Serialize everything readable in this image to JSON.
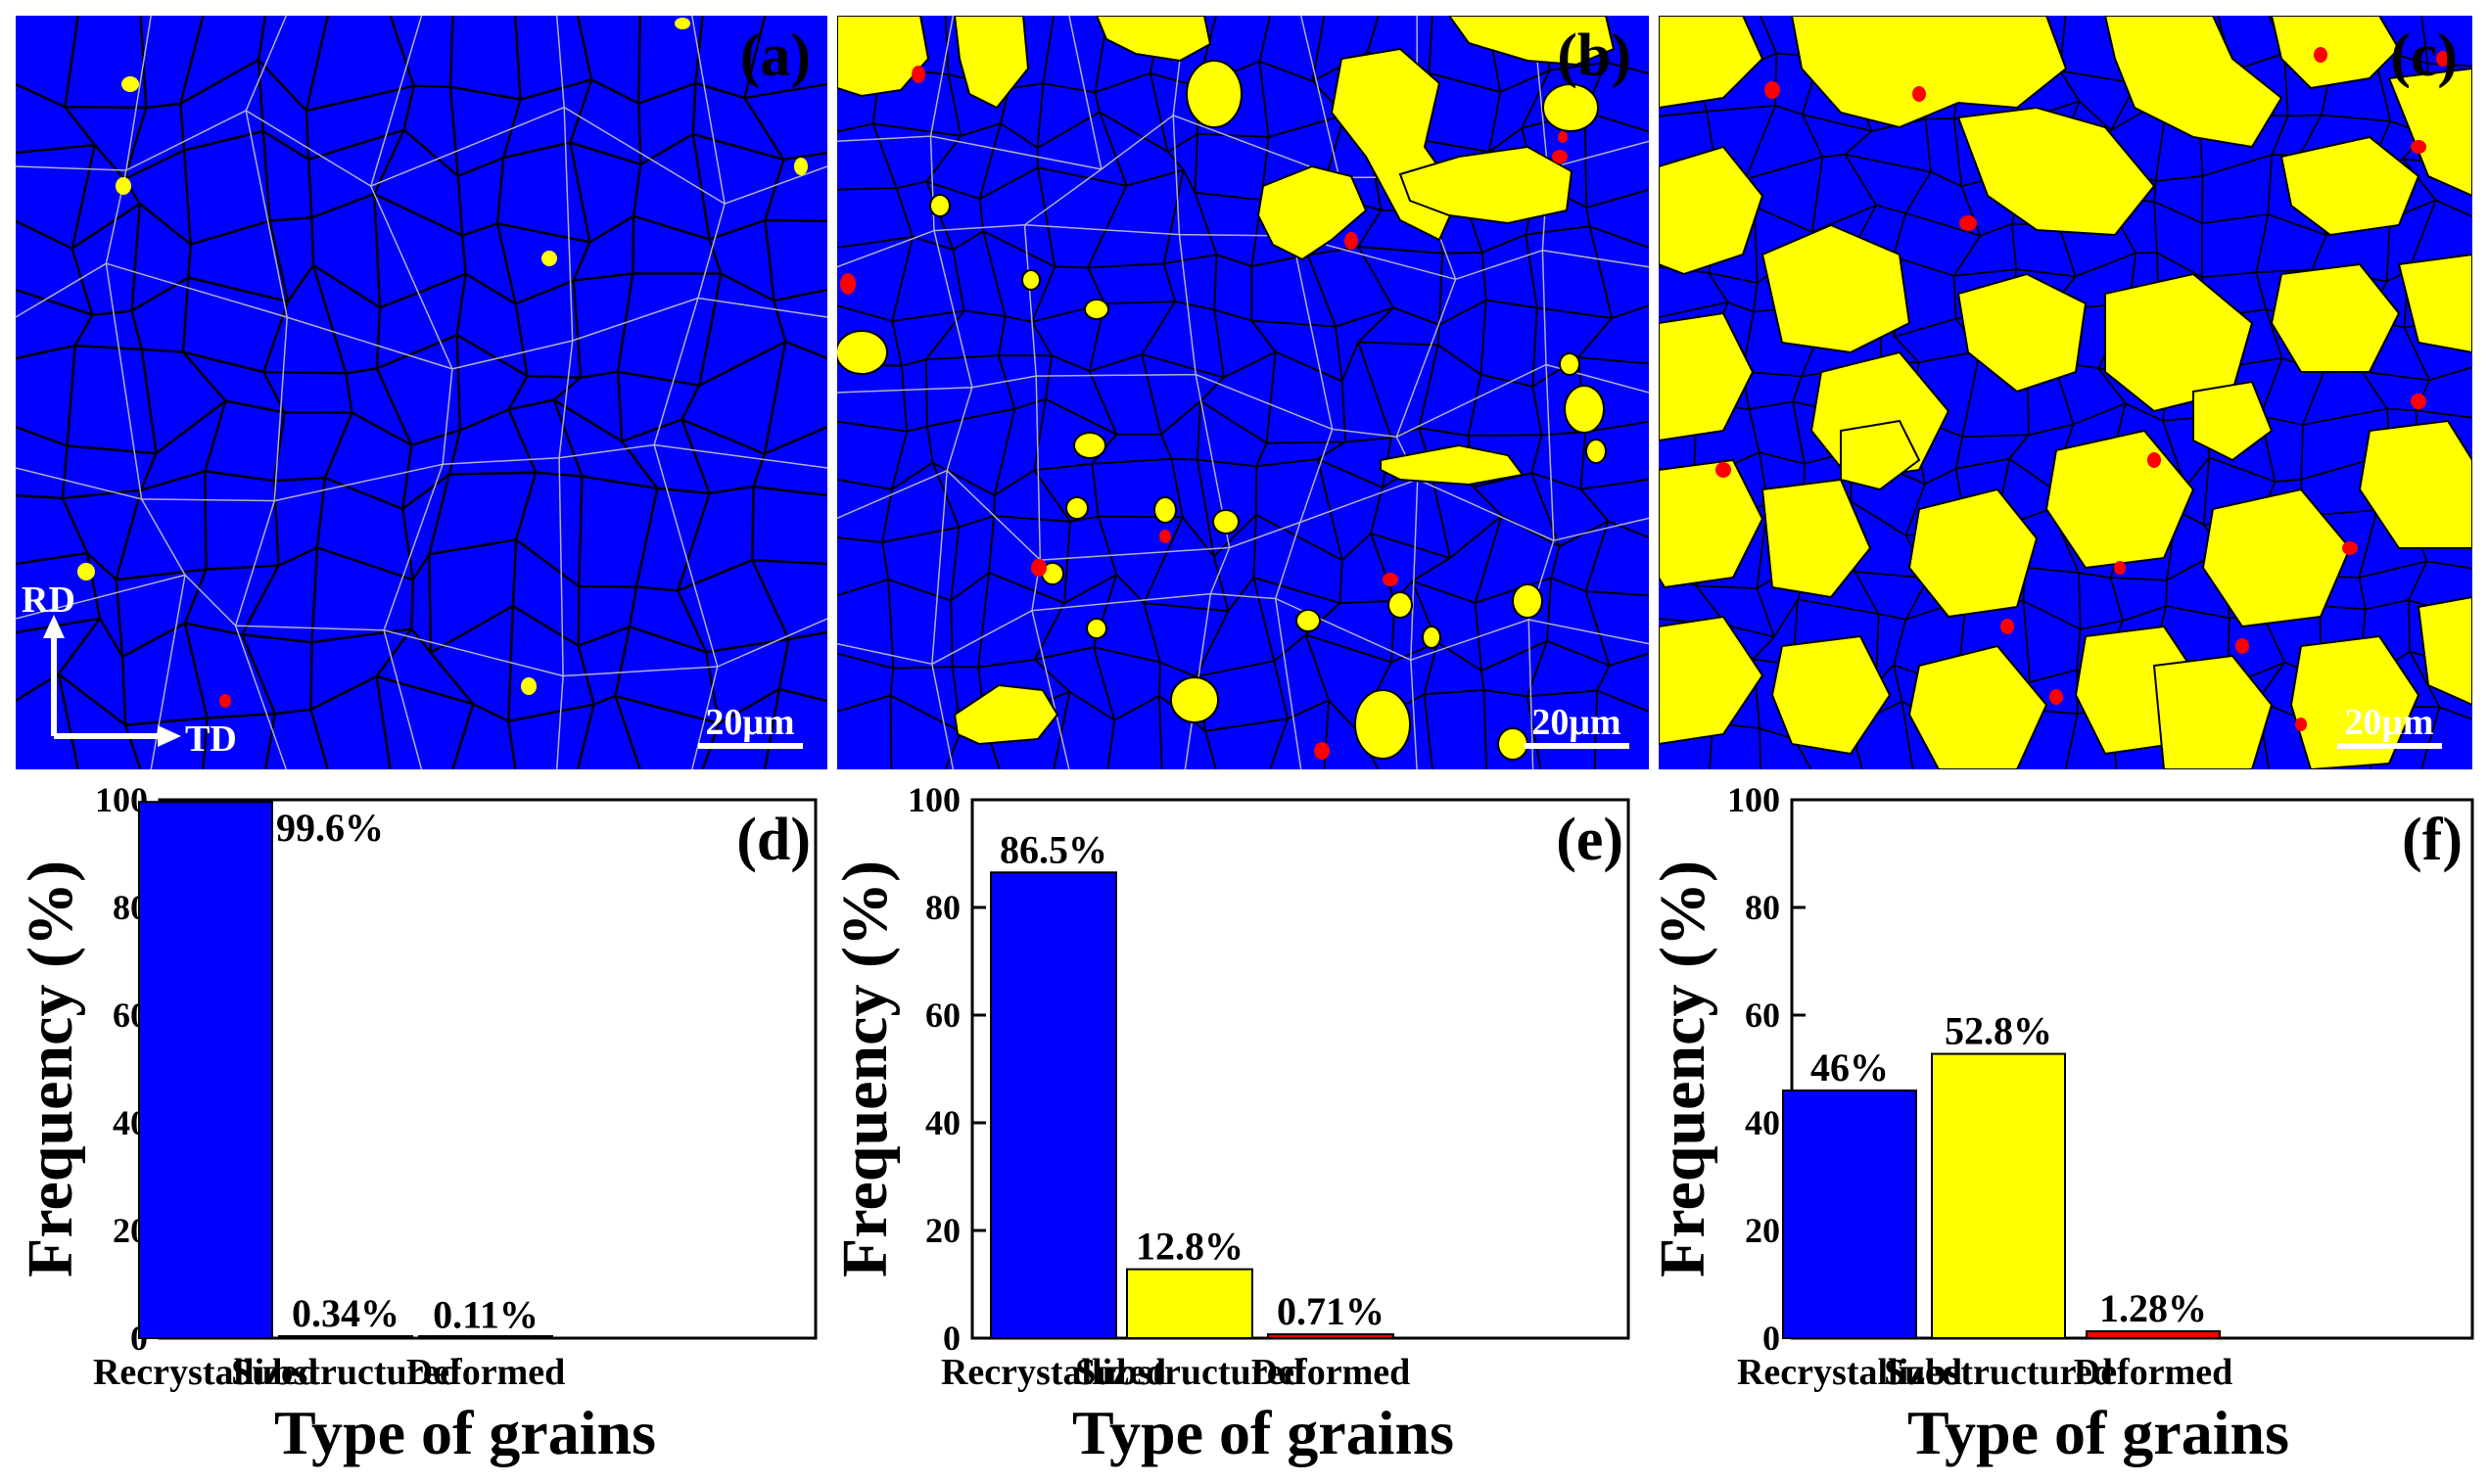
{
  "colors": {
    "recrystallized": "#0000ff",
    "substructured": "#ffff00",
    "deformed": "#ff0000",
    "boundary": "#000000",
    "low_angle_boundary": "#b0b0c8"
  },
  "maps": [
    {
      "label": "(a)",
      "scale_bar": "20μm",
      "axis_rd": "RD",
      "axis_td": "TD"
    },
    {
      "label": "(b)",
      "scale_bar": "20μm"
    },
    {
      "label": "(c)",
      "scale_bar": "20μm"
    }
  ],
  "chart_data": [
    {
      "type": "bar",
      "label": "(d)",
      "categories": [
        "Recrystallized",
        "Substructured",
        "Deformed"
      ],
      "values": [
        99.6,
        0.34,
        0.11
      ],
      "value_labels": [
        "99.6%",
        "0.34%",
        "0.11%"
      ],
      "bar_colors": [
        "#0000ff",
        "#ffff00",
        "#ff0000"
      ],
      "xlabel": "Type of grains",
      "ylabel": "Frequency (%)",
      "ylim": [
        0,
        100
      ],
      "yticks": [
        0,
        20,
        40,
        60,
        80,
        100
      ],
      "grid": false
    },
    {
      "type": "bar",
      "label": "(e)",
      "categories": [
        "Recrystallized",
        "Substructured",
        "Deformed"
      ],
      "values": [
        86.5,
        12.8,
        0.71
      ],
      "value_labels": [
        "86.5%",
        "12.8%",
        "0.71%"
      ],
      "bar_colors": [
        "#0000ff",
        "#ffff00",
        "#ff0000"
      ],
      "xlabel": "Type of grains",
      "ylabel": "Frequency (%)",
      "ylim": [
        0,
        100
      ],
      "yticks": [
        0,
        20,
        40,
        60,
        80,
        100
      ],
      "grid": false
    },
    {
      "type": "bar",
      "label": "(f)",
      "categories": [
        "Recrystallized",
        "Substructured",
        "Deformed"
      ],
      "values": [
        46,
        52.8,
        1.28
      ],
      "value_labels": [
        "46%",
        "52.8%",
        "1.28%"
      ],
      "bar_colors": [
        "#0000ff",
        "#ffff00",
        "#ff0000"
      ],
      "xlabel": "Type of grains",
      "ylabel": "Frequency (%)",
      "ylim": [
        0,
        100
      ],
      "yticks": [
        0,
        20,
        40,
        60,
        80,
        100
      ],
      "grid": false
    }
  ]
}
